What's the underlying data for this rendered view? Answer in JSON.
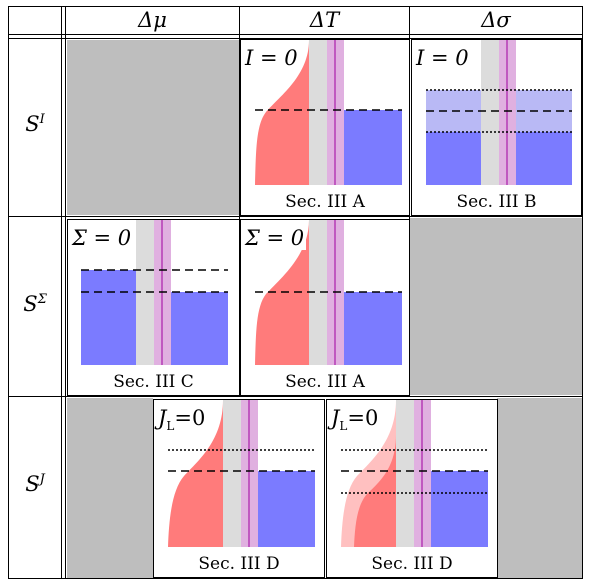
{
  "headers": {
    "col1": "Δμ",
    "col2": "ΔT",
    "col3": "Δσ"
  },
  "rows": {
    "r1": "S",
    "r1_sup": "I",
    "r2": "S",
    "r2_sup": "Σ",
    "r3": "S",
    "r3_sup": "J"
  },
  "panels": {
    "p11": {
      "cond": "I = 0",
      "caption": "Sec. III A"
    },
    "p12": {
      "cond": "I = 0",
      "caption": "Sec. III B"
    },
    "p21": {
      "cond": "Σ = 0",
      "caption": "Sec. III C"
    },
    "p22": {
      "cond": "Σ = 0",
      "caption": "Sec. III A"
    },
    "p31": {
      "cond_sym": "J",
      "cond_sub": "L",
      "cond_rest": "=0",
      "caption": "Sec. III D"
    },
    "p32": {
      "cond_sym": "J",
      "cond_sub": "L",
      "cond_rest": "=0",
      "caption": "Sec. III D"
    }
  },
  "colors": {
    "red": "#ff7b7b",
    "light_red": "#ffc0c0",
    "blue": "#7b7bff",
    "light_blue": "#b9b9f5",
    "gray": "#dcdcdc",
    "purple": "#e0b0e0",
    "cell_gray": "#bebebe"
  }
}
